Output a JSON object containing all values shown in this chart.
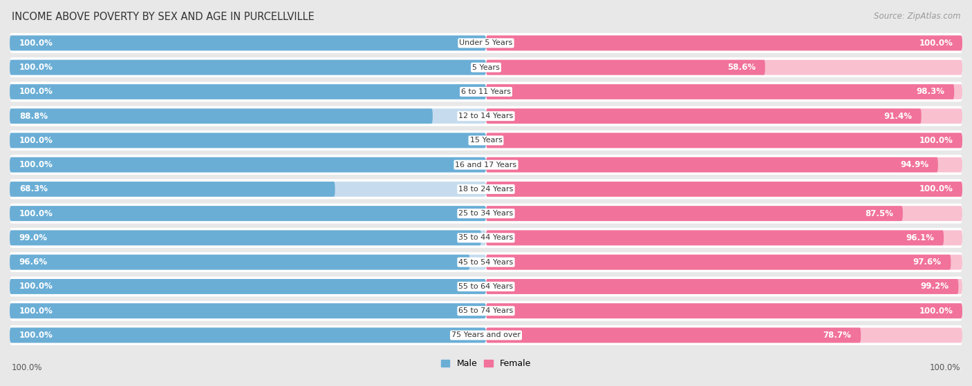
{
  "title": "INCOME ABOVE POVERTY BY SEX AND AGE IN PURCELLVILLE",
  "source": "Source: ZipAtlas.com",
  "categories": [
    "Under 5 Years",
    "5 Years",
    "6 to 11 Years",
    "12 to 14 Years",
    "15 Years",
    "16 and 17 Years",
    "18 to 24 Years",
    "25 to 34 Years",
    "35 to 44 Years",
    "45 to 54 Years",
    "55 to 64 Years",
    "65 to 74 Years",
    "75 Years and over"
  ],
  "male_values": [
    100.0,
    100.0,
    100.0,
    88.8,
    100.0,
    100.0,
    68.3,
    100.0,
    99.0,
    96.6,
    100.0,
    100.0,
    100.0
  ],
  "female_values": [
    100.0,
    58.6,
    98.3,
    91.4,
    100.0,
    94.9,
    100.0,
    87.5,
    96.1,
    97.6,
    99.2,
    100.0,
    78.7
  ],
  "male_color": "#6aaed6",
  "male_light_color": "#c6dcee",
  "female_color": "#f1729a",
  "female_light_color": "#f9c0d0",
  "male_label": "Male",
  "female_label": "Female",
  "background_color": "#e8e8e8",
  "row_bg_color": "#f0f0f0",
  "title_fontsize": 10.5,
  "label_fontsize": 8.0,
  "value_fontsize": 8.5,
  "legend_fontsize": 9,
  "source_fontsize": 8.5
}
